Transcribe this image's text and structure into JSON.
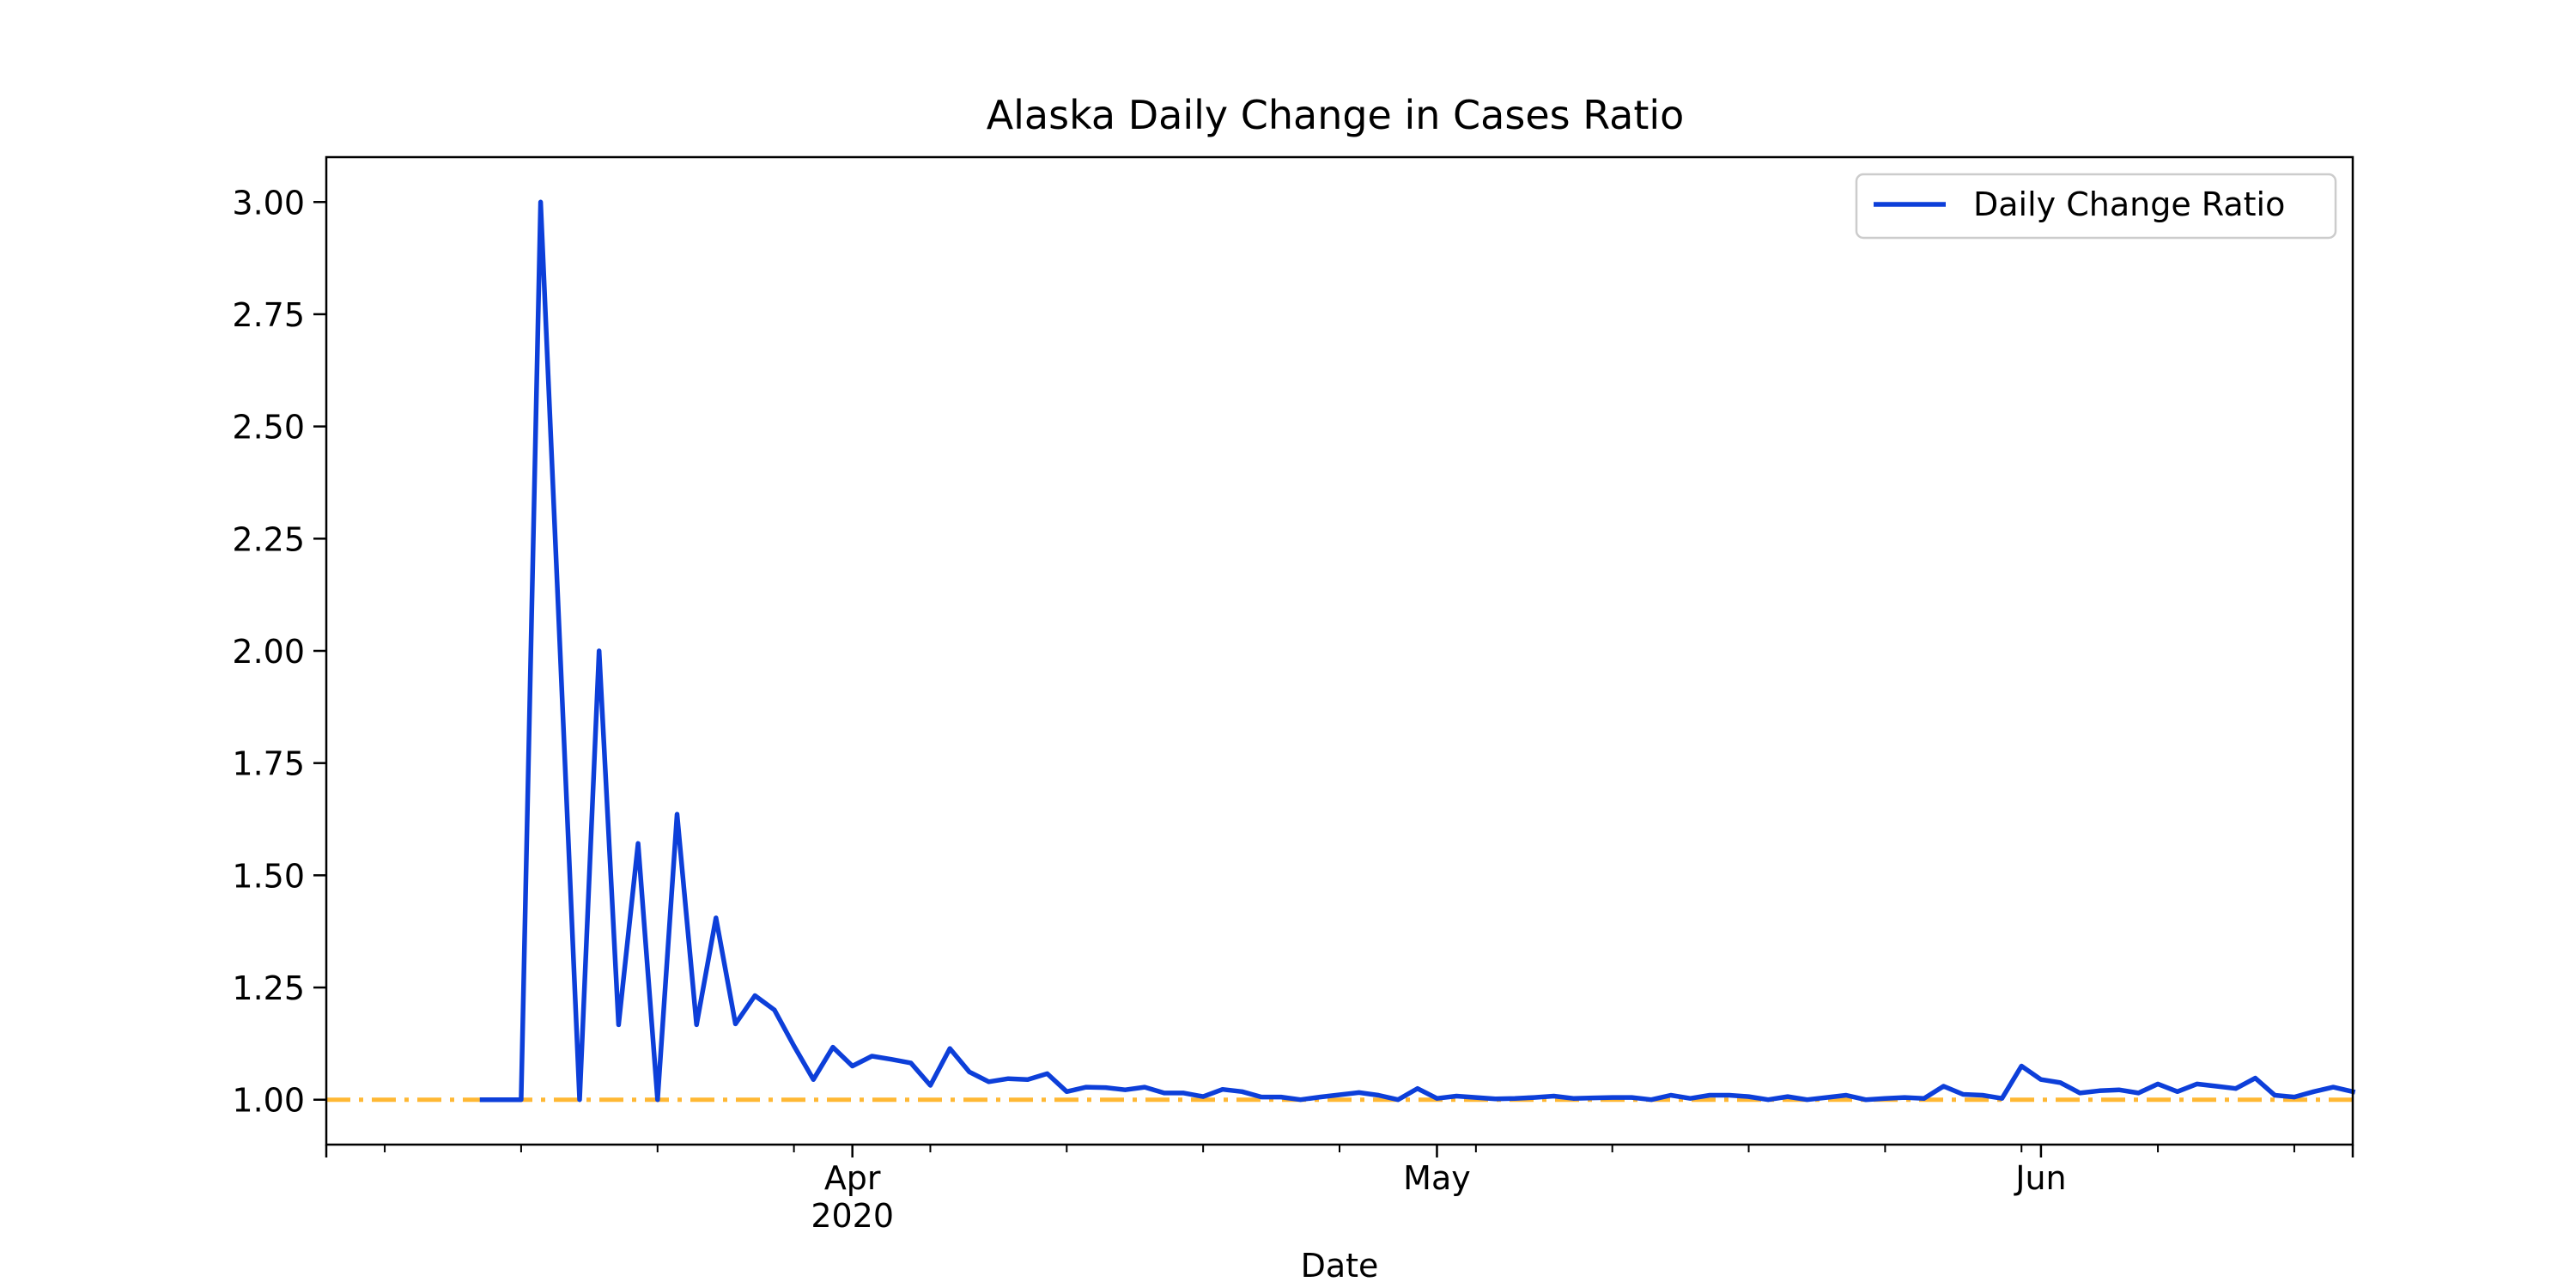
{
  "chart_data": {
    "type": "line",
    "title": "Alaska Daily Change in Cases Ratio",
    "xlabel": "Date",
    "ylabel": "",
    "ylim": [
      0.9,
      3.1
    ],
    "xlim": [
      "2020-03-05",
      "2020-06-17"
    ],
    "yticks": [
      "1.00",
      "1.25",
      "1.50",
      "1.75",
      "2.00",
      "2.25",
      "2.50",
      "2.75",
      "3.00"
    ],
    "xticks": [
      {
        "date": "2020-04-01",
        "label": "Apr",
        "sublabel": "2020"
      },
      {
        "date": "2020-05-01",
        "label": "May",
        "sublabel": ""
      },
      {
        "date": "2020-06-01",
        "label": "Jun",
        "sublabel": ""
      }
    ],
    "grid": false,
    "legend_position": "top-right",
    "legend": [
      "Daily Change Ratio"
    ],
    "reference_line": {
      "value": 1.0,
      "color": "#FFB833",
      "style": "dash-dot"
    },
    "series": [
      {
        "name": "Daily Change Ratio",
        "color": "#0D3FD9",
        "points": [
          [
            "2020-03-13",
            1.0
          ],
          [
            "2020-03-14",
            1.0
          ],
          [
            "2020-03-15",
            1.0
          ],
          [
            "2020-03-16",
            3.0
          ],
          [
            "2020-03-17",
            2.0
          ],
          [
            "2020-03-18",
            1.0
          ],
          [
            "2020-03-19",
            2.0
          ],
          [
            "2020-03-20",
            1.167
          ],
          [
            "2020-03-21",
            1.571
          ],
          [
            "2020-03-22",
            1.0
          ],
          [
            "2020-03-23",
            1.636
          ],
          [
            "2020-03-24",
            1.167
          ],
          [
            "2020-03-25",
            1.405
          ],
          [
            "2020-03-26",
            1.169
          ],
          [
            "2020-03-27",
            1.232
          ],
          [
            "2020-03-28",
            1.2
          ],
          [
            "2020-03-29",
            1.12
          ],
          [
            "2020-03-30",
            1.045
          ],
          [
            "2020-03-31",
            1.117
          ],
          [
            "2020-04-01",
            1.075
          ],
          [
            "2020-04-02",
            1.097
          ],
          [
            "2020-04-03",
            1.09
          ],
          [
            "2020-04-04",
            1.082
          ],
          [
            "2020-04-05",
            1.032
          ],
          [
            "2020-04-06",
            1.114
          ],
          [
            "2020-04-07",
            1.062
          ],
          [
            "2020-04-08",
            1.04
          ],
          [
            "2020-04-09",
            1.047
          ],
          [
            "2020-04-10",
            1.045
          ],
          [
            "2020-04-11",
            1.058
          ],
          [
            "2020-04-12",
            1.018
          ],
          [
            "2020-04-13",
            1.028
          ],
          [
            "2020-04-14",
            1.027
          ],
          [
            "2020-04-15",
            1.022
          ],
          [
            "2020-04-16",
            1.028
          ],
          [
            "2020-04-17",
            1.015
          ],
          [
            "2020-04-18",
            1.015
          ],
          [
            "2020-04-19",
            1.007
          ],
          [
            "2020-04-20",
            1.023
          ],
          [
            "2020-04-21",
            1.018
          ],
          [
            "2020-04-22",
            1.006
          ],
          [
            "2020-04-23",
            1.006
          ],
          [
            "2020-04-24",
            1.0
          ],
          [
            "2020-04-25",
            1.006
          ],
          [
            "2020-04-26",
            1.011
          ],
          [
            "2020-04-27",
            1.016
          ],
          [
            "2020-04-28",
            1.01
          ],
          [
            "2020-04-29",
            1.0
          ],
          [
            "2020-04-30",
            1.025
          ],
          [
            "2020-05-01",
            1.003
          ],
          [
            "2020-05-02",
            1.008
          ],
          [
            "2020-05-03",
            1.005
          ],
          [
            "2020-05-04",
            1.002
          ],
          [
            "2020-05-05",
            1.003
          ],
          [
            "2020-05-06",
            1.005
          ],
          [
            "2020-05-07",
            1.008
          ],
          [
            "2020-05-08",
            1.003
          ],
          [
            "2020-05-09",
            1.004
          ],
          [
            "2020-05-10",
            1.005
          ],
          [
            "2020-05-11",
            1.005
          ],
          [
            "2020-05-12",
            1.0
          ],
          [
            "2020-05-13",
            1.01
          ],
          [
            "2020-05-14",
            1.003
          ],
          [
            "2020-05-15",
            1.01
          ],
          [
            "2020-05-16",
            1.01
          ],
          [
            "2020-05-17",
            1.007
          ],
          [
            "2020-05-18",
            1.0
          ],
          [
            "2020-05-19",
            1.007
          ],
          [
            "2020-05-20",
            1.0
          ],
          [
            "2020-05-21",
            1.005
          ],
          [
            "2020-05-22",
            1.01
          ],
          [
            "2020-05-23",
            1.0
          ],
          [
            "2020-05-24",
            1.003
          ],
          [
            "2020-05-25",
            1.005
          ],
          [
            "2020-05-26",
            1.003
          ],
          [
            "2020-05-27",
            1.03
          ],
          [
            "2020-05-28",
            1.012
          ],
          [
            "2020-05-29",
            1.01
          ],
          [
            "2020-05-30",
            1.003
          ],
          [
            "2020-05-31",
            1.075
          ],
          [
            "2020-06-01",
            1.045
          ],
          [
            "2020-06-02",
            1.038
          ],
          [
            "2020-06-03",
            1.015
          ],
          [
            "2020-06-04",
            1.02
          ],
          [
            "2020-06-05",
            1.022
          ],
          [
            "2020-06-06",
            1.015
          ],
          [
            "2020-06-07",
            1.035
          ],
          [
            "2020-06-08",
            1.018
          ],
          [
            "2020-06-09",
            1.035
          ],
          [
            "2020-06-10",
            1.03
          ],
          [
            "2020-06-11",
            1.025
          ],
          [
            "2020-06-12",
            1.048
          ],
          [
            "2020-06-13",
            1.01
          ],
          [
            "2020-06-14",
            1.006
          ],
          [
            "2020-06-15",
            1.018
          ],
          [
            "2020-06-16",
            1.028
          ],
          [
            "2020-06-17",
            1.018
          ]
        ]
      }
    ]
  }
}
